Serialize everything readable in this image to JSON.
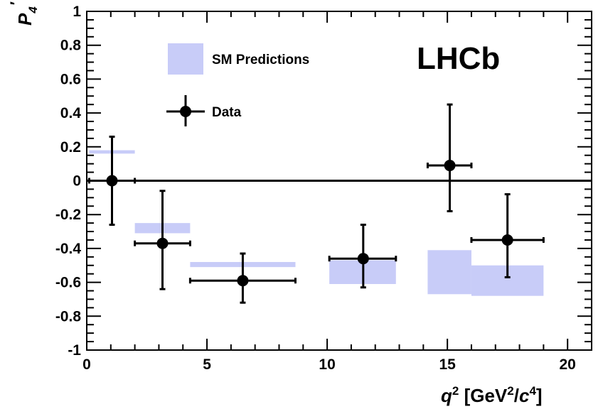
{
  "chart_data": {
    "type": "scatter",
    "title": "",
    "brand_label": "LHCb",
    "ylabel": {
      "symbol": "P",
      "sub": "4",
      "prime": "′"
    },
    "xlabel": {
      "q": "q",
      "sup": "2",
      "open": " [GeV",
      "sup2": "2",
      "slash": "/",
      "c": "c",
      "sup4": "4",
      "close": "]"
    },
    "xlim": [
      0,
      21
    ],
    "ylim": [
      -1,
      1
    ],
    "x_ticks": [
      0,
      5,
      10,
      15,
      20
    ],
    "x_tick_labels": [
      "0",
      "5",
      "10",
      "15",
      "20"
    ],
    "y_ticks": [
      -1,
      -0.8,
      -0.6,
      -0.4,
      -0.2,
      0,
      0.2,
      0.4,
      0.6,
      0.8,
      1
    ],
    "y_tick_labels": [
      "-1",
      "-0.8",
      "-0.6",
      "-0.4",
      "-0.2",
      "0",
      "0.2",
      "0.4",
      "0.6",
      "0.8",
      "1"
    ],
    "grid": false,
    "reference_line_y": 0,
    "legend": {
      "position": "top-left",
      "entries": [
        {
          "label": "SM Predictions",
          "kind": "box"
        },
        {
          "label": "Data",
          "kind": "marker"
        }
      ]
    },
    "colors": {
      "sm_band": "#c8ccf8",
      "data": "#000000"
    },
    "series": [
      {
        "name": "SM Predictions",
        "kind": "band",
        "values": [
          {
            "x_lo": 0.1,
            "x_hi": 2.0,
            "y_lo": 0.16,
            "y_hi": 0.18
          },
          {
            "x_lo": 2.0,
            "x_hi": 4.3,
            "y_lo": -0.31,
            "y_hi": -0.25
          },
          {
            "x_lo": 4.3,
            "x_hi": 8.68,
            "y_lo": -0.51,
            "y_hi": -0.48
          },
          {
            "x_lo": 10.09,
            "x_hi": 12.86,
            "y_lo": -0.61,
            "y_hi": -0.47
          },
          {
            "x_lo": 14.18,
            "x_hi": 16.0,
            "y_lo": -0.67,
            "y_hi": -0.41
          },
          {
            "x_lo": 16.0,
            "x_hi": 19.0,
            "y_lo": -0.68,
            "y_hi": -0.5
          }
        ]
      },
      {
        "name": "Data",
        "kind": "points",
        "values": [
          {
            "x": 1.05,
            "y": 0.0,
            "x_lo": 0.1,
            "x_hi": 2.0,
            "y_lo": -0.26,
            "y_hi": 0.26
          },
          {
            "x": 3.15,
            "y": -0.37,
            "x_lo": 2.0,
            "x_hi": 4.3,
            "y_lo": -0.64,
            "y_hi": -0.06
          },
          {
            "x": 6.49,
            "y": -0.59,
            "x_lo": 4.3,
            "x_hi": 8.68,
            "y_lo": -0.72,
            "y_hi": -0.43
          },
          {
            "x": 11.5,
            "y": -0.46,
            "x_lo": 10.09,
            "x_hi": 12.86,
            "y_lo": -0.63,
            "y_hi": -0.26
          },
          {
            "x": 15.1,
            "y": 0.09,
            "x_lo": 14.18,
            "x_hi": 16.0,
            "y_lo": -0.18,
            "y_hi": 0.45
          },
          {
            "x": 17.5,
            "y": -0.35,
            "x_lo": 16.0,
            "x_hi": 19.0,
            "y_lo": -0.57,
            "y_hi": -0.08
          }
        ]
      }
    ]
  }
}
